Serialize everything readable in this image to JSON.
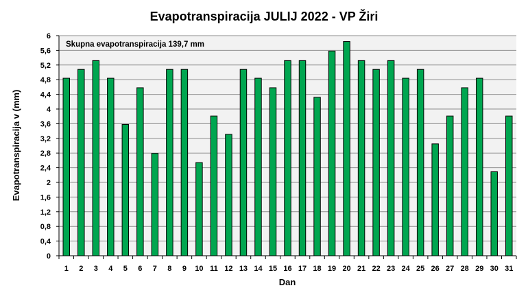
{
  "chart_data": {
    "type": "bar",
    "title": "Evapotranspiracija  JULIJ 2022 - VP Žiri",
    "xlabel": "Dan",
    "ylabel": "Evapotranspiracija v  (mm)",
    "annotation": "Skupna evapotranspiracija 139,7 mm",
    "categories": [
      "1",
      "2",
      "3",
      "4",
      "5",
      "6",
      "7",
      "8",
      "9",
      "10",
      "11",
      "12",
      "13",
      "14",
      "15",
      "16",
      "17",
      "18",
      "19",
      "20",
      "21",
      "22",
      "23",
      "24",
      "25",
      "26",
      "27",
      "28",
      "29",
      "30",
      "31"
    ],
    "values": [
      4.84,
      5.08,
      5.32,
      4.84,
      3.58,
      4.58,
      2.79,
      5.08,
      5.08,
      2.54,
      3.81,
      3.31,
      5.08,
      4.84,
      4.58,
      5.32,
      5.32,
      4.32,
      5.58,
      5.84,
      5.32,
      5.08,
      5.32,
      4.84,
      5.08,
      3.05,
      3.81,
      4.58,
      4.84,
      2.29,
      3.81
    ],
    "ylim": [
      0,
      6
    ],
    "yticks": [
      "0",
      "0,4",
      "0,8",
      "1,2",
      "1,6",
      "2",
      "2,4",
      "2,8",
      "3,2",
      "3,6",
      "4",
      "4,4",
      "4,8",
      "5,2",
      "5,6",
      "6"
    ],
    "grid": true,
    "colors": {
      "bar_fill": "#00A650",
      "bar_stroke": "#000000",
      "plot_bg": "#F2F2F2",
      "grid": "#8C8C8C"
    }
  }
}
